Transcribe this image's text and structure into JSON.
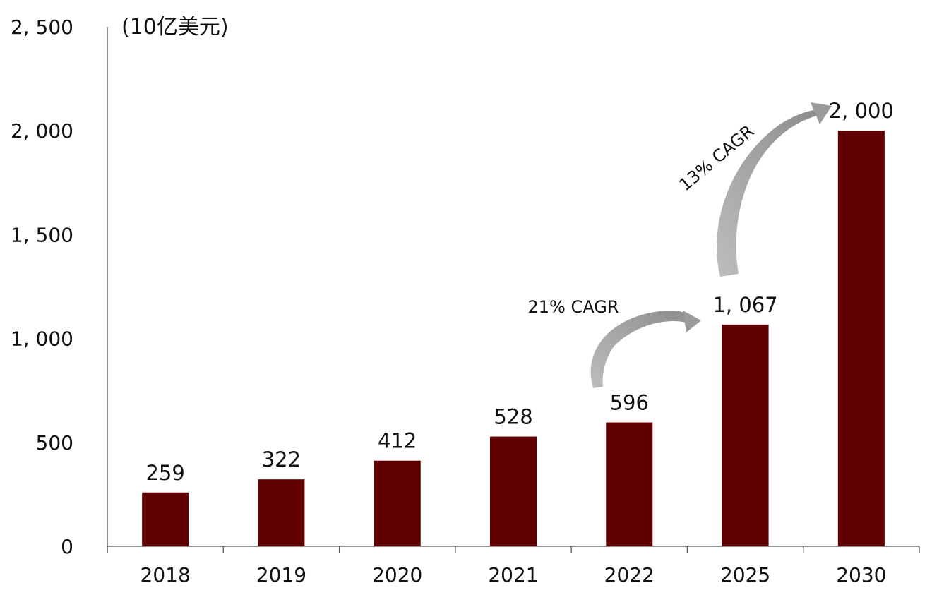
{
  "chart_data": {
    "type": "bar",
    "unit_label": "(10亿美元)",
    "categories": [
      "2018",
      "2019",
      "2020",
      "2021",
      "2022",
      "2025",
      "2030"
    ],
    "values": [
      259,
      322,
      412,
      528,
      596,
      1067,
      2000
    ],
    "value_labels": [
      "259",
      "322",
      "412",
      "528",
      "596",
      "1, 067",
      "2, 000"
    ],
    "ylim": [
      0,
      2500
    ],
    "y_ticks": [
      0,
      500,
      1000,
      1500,
      2000,
      2500
    ],
    "y_tick_labels": [
      "0",
      "500",
      "1, 000",
      "1, 500",
      "2, 000",
      "2, 500"
    ],
    "bar_color": "#600000",
    "arrow_color": "#9a9a9a",
    "grid": false,
    "annotations": [
      {
        "text": "21% CAGR",
        "from": "2022",
        "to": "2025"
      },
      {
        "text": "13% CAGR",
        "from": "2025",
        "to": "2030"
      }
    ]
  }
}
